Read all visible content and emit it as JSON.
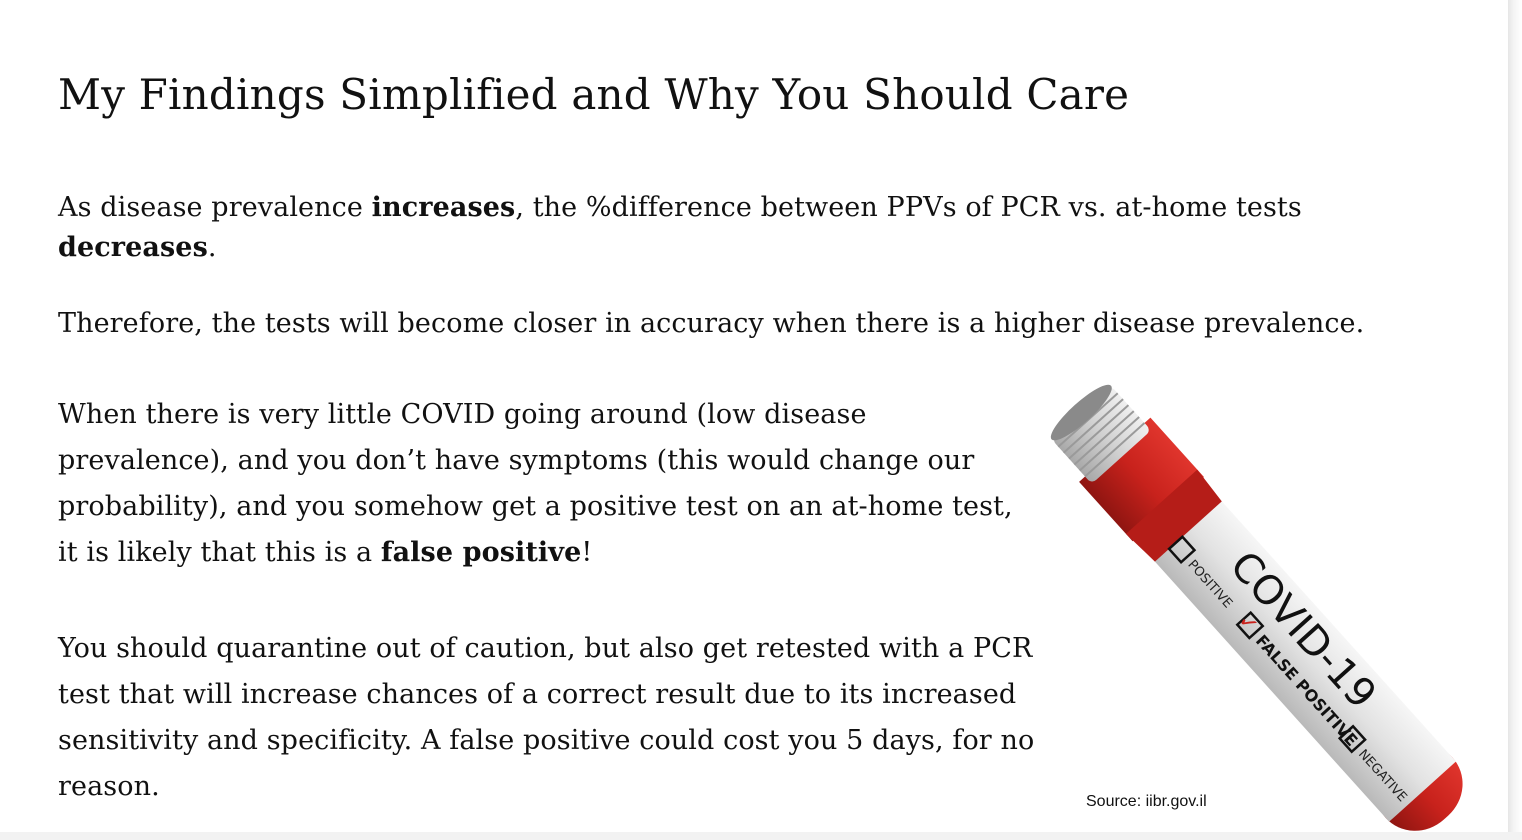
{
  "title": "My Findings Simplified and Why You Should Care",
  "paragraph1": {
    "t1": "As disease prevalence ",
    "b1": "increases",
    "t2": ", the %difference between PPVs of PCR vs. at-home tests ",
    "b2": "decreases",
    "t3": "."
  },
  "paragraph2": "Therefore, the tests will become closer in accuracy when there is a higher disease prevalence.",
  "paragraph3": {
    "t1": "When there is very little COVID going around (low disease prevalence), and you don’t have symptoms (this would change our probability), and you somehow get a positive test on an at-home test, it is likely that this is a ",
    "b1": "false positive",
    "t2": "!"
  },
  "paragraph4": "You should quarantine out of caution, but also get retested with a PCR test that will increase chances of a correct result due to its increased sensitivity and specificity. A false positive could cost you 5 days, for no reason.",
  "tube": {
    "label": "COVID-19",
    "option_positive": "POSITIVE",
    "option_false_positive": "FALSE POSITIVE",
    "option_negative": "NEGATIVE",
    "check_mark": "✓",
    "cap_color": "#d8d8d8",
    "neck_color": "#c8221c",
    "body_color": "#e4e4e4"
  },
  "source": "Source: iibr.gov.il"
}
